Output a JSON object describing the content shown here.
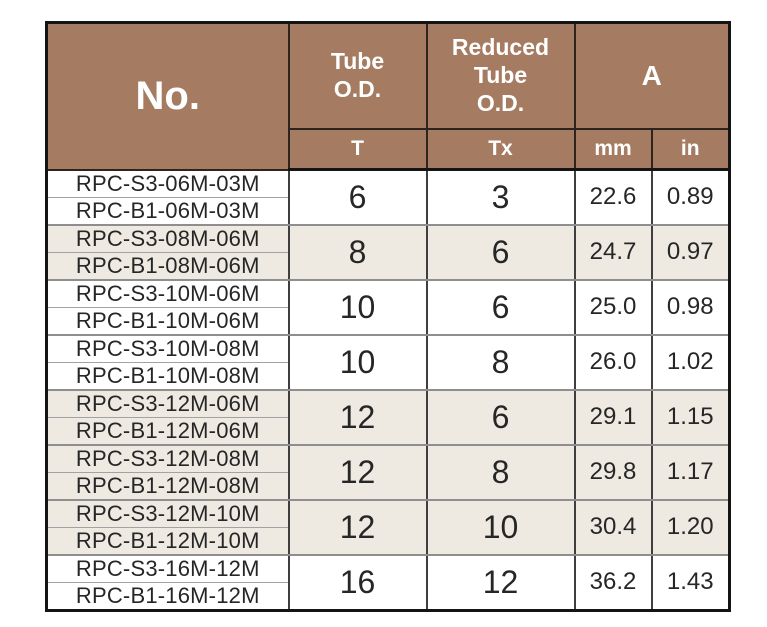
{
  "colors": {
    "header-bg": "#a57c62",
    "header-text": "#ffffff",
    "row-shaded": "#eeeae2",
    "body-text": "#262626"
  },
  "header": {
    "no": "No.",
    "tube_od": "Tube\nO.D.",
    "reduced_tube_od": "Reduced\nTube\nO.D.",
    "a": "A",
    "t": "T",
    "tx": "Tx",
    "mm": "mm",
    "in": "in"
  },
  "rows": [
    {
      "s3": "RPC-S3-06M-03M",
      "b1": "RPC-B1-06M-03M",
      "t": "6",
      "tx": "3",
      "mm": "22.6",
      "in": "0.89",
      "shaded": false
    },
    {
      "s3": "RPC-S3-08M-06M",
      "b1": "RPC-B1-08M-06M",
      "t": "8",
      "tx": "6",
      "mm": "24.7",
      "in": "0.97",
      "shaded": true
    },
    {
      "s3": "RPC-S3-10M-06M",
      "b1": "RPC-B1-10M-06M",
      "t": "10",
      "tx": "6",
      "mm": "25.0",
      "in": "0.98",
      "shaded": false
    },
    {
      "s3": "RPC-S3-10M-08M",
      "b1": "RPC-B1-10M-08M",
      "t": "10",
      "tx": "8",
      "mm": "26.0",
      "in": "1.02",
      "shaded": false
    },
    {
      "s3": "RPC-S3-12M-06M",
      "b1": "RPC-B1-12M-06M",
      "t": "12",
      "tx": "6",
      "mm": "29.1",
      "in": "1.15",
      "shaded": true
    },
    {
      "s3": "RPC-S3-12M-08M",
      "b1": "RPC-B1-12M-08M",
      "t": "12",
      "tx": "8",
      "mm": "29.8",
      "in": "1.17",
      "shaded": true
    },
    {
      "s3": "RPC-S3-12M-10M",
      "b1": "RPC-B1-12M-10M",
      "t": "12",
      "tx": "10",
      "mm": "30.4",
      "in": "1.20",
      "shaded": true
    },
    {
      "s3": "RPC-S3-16M-12M",
      "b1": "RPC-B1-16M-12M",
      "t": "16",
      "tx": "12",
      "mm": "36.2",
      "in": "1.43",
      "shaded": false
    }
  ]
}
